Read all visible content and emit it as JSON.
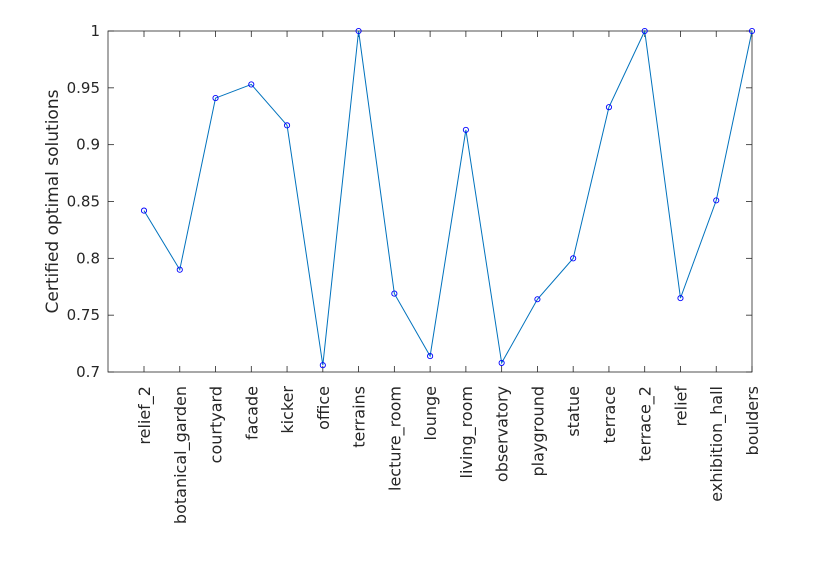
{
  "chart_data": {
    "type": "line",
    "title": "",
    "xlabel": "",
    "ylabel": "Certified optimal solutions",
    "categories": [
      "relief_2",
      "botanical_garden",
      "courtyard",
      "facade",
      "kicker",
      "office",
      "terrains",
      "lecture_room",
      "lounge",
      "living_room",
      "observatory",
      "playground",
      "statue",
      "terrace",
      "terrace_2",
      "relief",
      "exhibition_hall",
      "boulders"
    ],
    "series": [
      {
        "values": [
          0.842,
          0.79,
          0.941,
          0.953,
          0.917,
          0.706,
          1.0,
          0.769,
          0.714,
          0.913,
          0.708,
          0.764,
          0.8,
          0.933,
          1.0,
          0.765,
          0.851,
          1.0
        ],
        "color": "#0072bd",
        "marker": "circle",
        "marker_color": "#0000ff"
      }
    ],
    "ylim": [
      0.7,
      1.0
    ],
    "yticks": [
      "0.7",
      "0.75",
      "0.8",
      "0.85",
      "0.9",
      "0.95",
      "1"
    ],
    "grid": false,
    "legend": "none"
  }
}
